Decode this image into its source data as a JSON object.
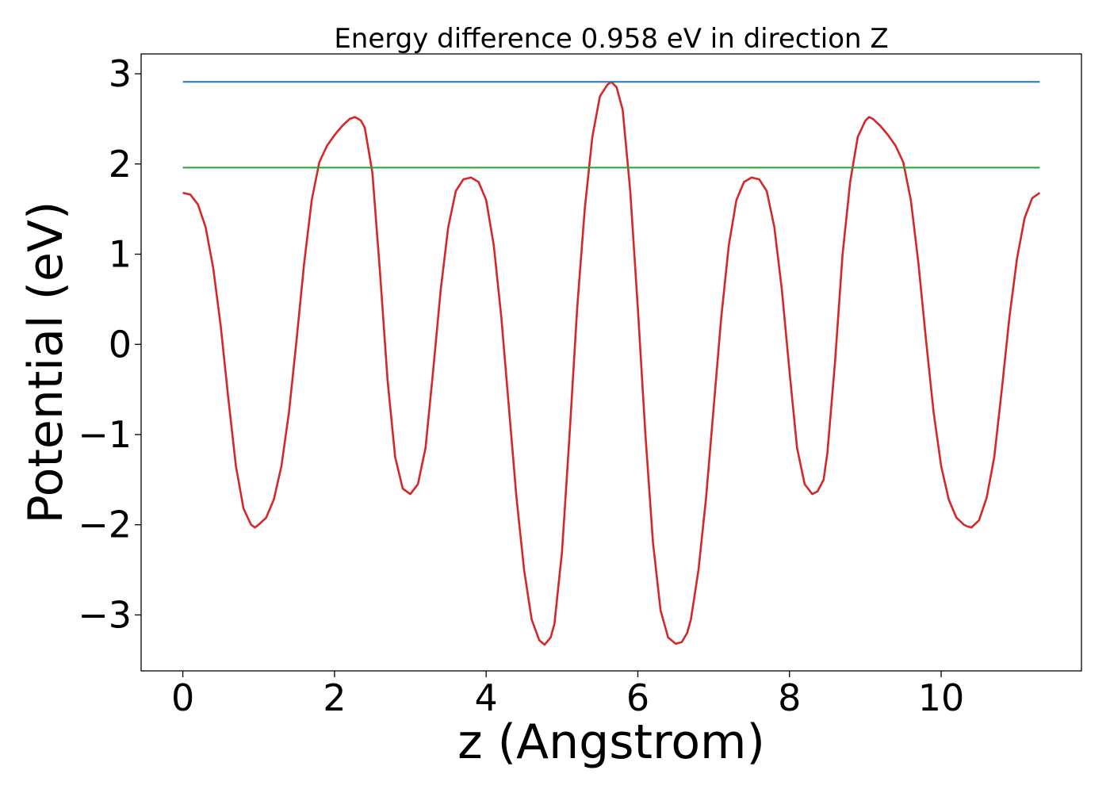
{
  "chart_data": {
    "type": "line",
    "title": "Energy difference 0.958 eV in direction Z",
    "xlabel": "z (Angstrom)",
    "ylabel": "Potential (eV)",
    "xlim": [
      -0.55,
      11.85
    ],
    "ylim": [
      -3.62,
      3.22
    ],
    "xticks": [
      0,
      2,
      4,
      6,
      8,
      10
    ],
    "yticks": [
      -3,
      -2,
      -1,
      0,
      1,
      2,
      3
    ],
    "grid": false,
    "series": [
      {
        "color": "#d62728",
        "x": [
          0,
          0.1,
          0.2,
          0.3,
          0.4,
          0.5,
          0.6,
          0.7,
          0.8,
          0.9,
          0.95,
          1.0,
          1.1,
          1.2,
          1.3,
          1.4,
          1.5,
          1.6,
          1.7,
          1.8,
          1.9,
          2.0,
          2.1,
          2.2,
          2.27,
          2.35,
          2.4,
          2.5,
          2.6,
          2.7,
          2.8,
          2.9,
          3.0,
          3.1,
          3.2,
          3.3,
          3.4,
          3.5,
          3.6,
          3.7,
          3.8,
          3.9,
          4.0,
          4.1,
          4.2,
          4.3,
          4.4,
          4.5,
          4.6,
          4.7,
          4.77,
          4.85,
          4.9,
          5.0,
          5.1,
          5.2,
          5.3,
          5.4,
          5.5,
          5.6,
          5.65,
          5.72,
          5.8,
          5.9,
          6.0,
          6.1,
          6.2,
          6.3,
          6.4,
          6.5,
          6.58,
          6.65,
          6.7,
          6.8,
          6.9,
          7.0,
          7.1,
          7.2,
          7.3,
          7.4,
          7.5,
          7.6,
          7.7,
          7.8,
          7.9,
          8.0,
          8.1,
          8.2,
          8.3,
          8.37,
          8.45,
          8.5,
          8.6,
          8.7,
          8.8,
          8.9,
          9.0,
          9.05,
          9.1,
          9.2,
          9.3,
          9.4,
          9.5,
          9.6,
          9.7,
          9.8,
          9.9,
          10.0,
          10.1,
          10.2,
          10.3,
          10.35,
          10.4,
          10.5,
          10.6,
          10.7,
          10.8,
          10.9,
          11.0,
          11.1,
          11.2,
          11.3
        ],
        "y": [
          1.68,
          1.66,
          1.55,
          1.3,
          0.85,
          0.2,
          -0.6,
          -1.35,
          -1.82,
          -2.0,
          -2.03,
          -2.0,
          -1.92,
          -1.72,
          -1.35,
          -0.75,
          0.05,
          0.9,
          1.6,
          2.02,
          2.2,
          2.32,
          2.42,
          2.5,
          2.52,
          2.48,
          2.4,
          1.9,
          0.8,
          -0.4,
          -1.25,
          -1.6,
          -1.66,
          -1.55,
          -1.15,
          -0.3,
          0.6,
          1.3,
          1.7,
          1.83,
          1.85,
          1.8,
          1.6,
          1.1,
          0.3,
          -0.7,
          -1.7,
          -2.5,
          -3.05,
          -3.28,
          -3.33,
          -3.25,
          -3.1,
          -2.3,
          -1.0,
          0.4,
          1.5,
          2.3,
          2.75,
          2.88,
          2.91,
          2.85,
          2.6,
          1.7,
          0.4,
          -1.0,
          -2.2,
          -2.95,
          -3.25,
          -3.32,
          -3.3,
          -3.2,
          -3.05,
          -2.5,
          -1.7,
          -0.7,
          0.3,
          1.1,
          1.6,
          1.8,
          1.85,
          1.83,
          1.7,
          1.3,
          0.6,
          -0.3,
          -1.15,
          -1.55,
          -1.66,
          -1.63,
          -1.5,
          -1.2,
          -0.2,
          1.0,
          1.8,
          2.3,
          2.48,
          2.52,
          2.5,
          2.42,
          2.32,
          2.2,
          2.02,
          1.6,
          0.9,
          0.05,
          -0.75,
          -1.35,
          -1.72,
          -1.92,
          -2.0,
          -2.02,
          -2.03,
          -1.95,
          -1.7,
          -1.25,
          -0.5,
          0.3,
          0.95,
          1.4,
          1.62,
          1.68
        ]
      },
      {
        "color": "#1f77b4",
        "x": [
          0,
          11.3
        ],
        "y": [
          2.91,
          2.91
        ]
      },
      {
        "color": "#2ca02c",
        "x": [
          0,
          11.3
        ],
        "y": [
          1.96,
          1.96
        ]
      }
    ]
  }
}
